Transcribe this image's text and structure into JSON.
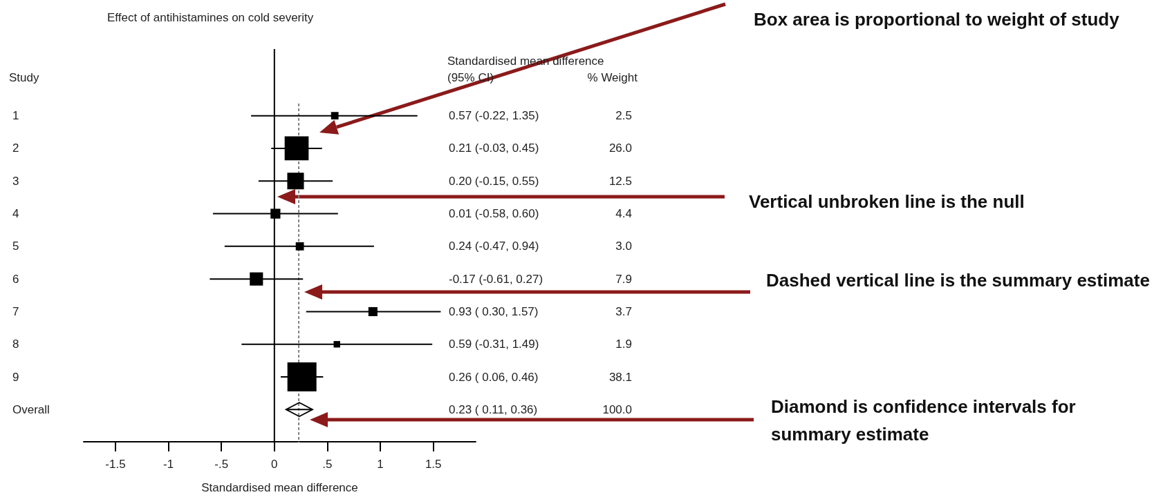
{
  "chart_data": {
    "type": "scatter",
    "orientation": "horizontal",
    "title": "Effect of antihistamines on cold severity",
    "xlabel": "Standardised mean difference",
    "ylabel": "Study",
    "categories": [
      "1",
      "2",
      "3",
      "4",
      "5",
      "6",
      "7",
      "8",
      "9",
      "Overall"
    ],
    "xlim": [
      -1.8,
      1.9
    ],
    "xticks": [
      -1.5,
      -1,
      {
        "value": -0.5,
        "label": "-.5"
      },
      0,
      {
        "value": 0.5,
        "label": ".5"
      },
      1,
      1.5
    ],
    "series": [
      {
        "marker": "square",
        "color": "#000000",
        "values": [
          0.57,
          0.21,
          0.2,
          0.01,
          0.24,
          -0.17,
          0.93,
          0.59,
          0.26,
          null
        ],
        "errors": [
          [
            -0.22,
            1.35
          ],
          [
            -0.03,
            0.45
          ],
          [
            -0.15,
            0.55
          ],
          [
            -0.58,
            0.6
          ],
          [
            -0.47,
            0.94
          ],
          [
            -0.61,
            0.27
          ],
          [
            0.3,
            1.57
          ],
          [
            -0.31,
            1.49
          ],
          [
            0.06,
            0.46
          ],
          null
        ],
        "sizes": [
          0.066,
          0.682,
          0.328,
          0.115,
          0.079,
          0.207,
          0.097,
          0.05,
          1,
          null
        ],
        "value_labels": [
          "0.57 (-0.22, 1.35)",
          "0.21 (-0.03, 0.45)",
          "0.20 (-0.15, 0.55)",
          "0.01 (-0.58, 0.60)",
          "0.24 (-0.47, 0.94)",
          "-0.17 (-0.61, 0.27)",
          "0.93 ( 0.30, 1.57)",
          "0.59 (-0.31, 1.49)",
          "0.26 ( 0.06, 0.46)",
          null
        ]
      },
      {
        "marker": "diamond",
        "color": "#000000",
        "values": [
          null,
          null,
          null,
          null,
          null,
          null,
          null,
          null,
          null,
          0.23
        ],
        "errors": [
          null,
          null,
          null,
          null,
          null,
          null,
          null,
          null,
          null,
          [
            0.11,
            0.36
          ]
        ]
      }
    ],
    "ref_lines": [
      {
        "axis": "x",
        "value": 0,
        "line_style": "solid",
        "color": "#000000"
      },
      {
        "axis": "x",
        "value": 0.23,
        "line_style": "dashed",
        "color": "#808080"
      }
    ],
    "annotations": [
      "Standardised mean difference",
      "(95% CI)",
      "% Weight",
      "0.23 ( 0.11, 0.36)",
      "Box area is proportional to weight of study",
      "Vertical unbroken line is the null",
      "Dashed vertical line is the summary estimate",
      "Diamond is confidence intervals for summary estimate",
      "2.5",
      "26.0",
      "12.5",
      "4.4",
      "3.0",
      "7.9",
      "3.7",
      "1.9",
      "38.1",
      "100.0"
    ]
  }
}
